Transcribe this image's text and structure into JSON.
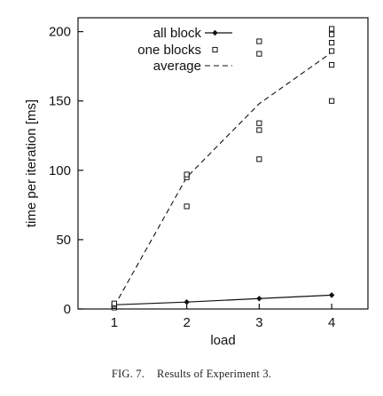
{
  "caption": {
    "label": "FIG. 7.",
    "text": "Results of Experiment 3."
  },
  "chart_data": {
    "type": "line",
    "title": "",
    "xlabel": "load",
    "ylabel": "time per iteration [ms]",
    "xlim": [
      0.5,
      4.5
    ],
    "ylim": [
      0,
      210
    ],
    "xticks": [
      1,
      2,
      3,
      4
    ],
    "yticks": [
      0,
      50,
      100,
      150,
      200
    ],
    "grid": false,
    "legend_position": "top-left",
    "series": [
      {
        "name": "all block",
        "style": "solid line with diamond markers",
        "x": [
          1,
          2,
          3,
          4
        ],
        "y": [
          3,
          5,
          7.5,
          10
        ]
      },
      {
        "name": "one blocks",
        "style": "open square markers, no line",
        "points": [
          [
            1,
            1
          ],
          [
            1,
            2
          ],
          [
            1,
            3
          ],
          [
            1,
            4
          ],
          [
            2,
            74
          ],
          [
            2,
            95
          ],
          [
            2,
            97
          ],
          [
            3,
            108
          ],
          [
            3,
            129
          ],
          [
            3,
            134
          ],
          [
            3,
            184
          ],
          [
            3,
            193
          ],
          [
            4,
            150
          ],
          [
            4,
            176
          ],
          [
            4,
            186
          ],
          [
            4,
            192
          ],
          [
            4,
            198
          ],
          [
            4,
            202
          ]
        ]
      },
      {
        "name": "average",
        "style": "dashed line",
        "x": [
          1,
          2,
          3,
          4
        ],
        "y": [
          2,
          95,
          148,
          185
        ]
      }
    ]
  }
}
